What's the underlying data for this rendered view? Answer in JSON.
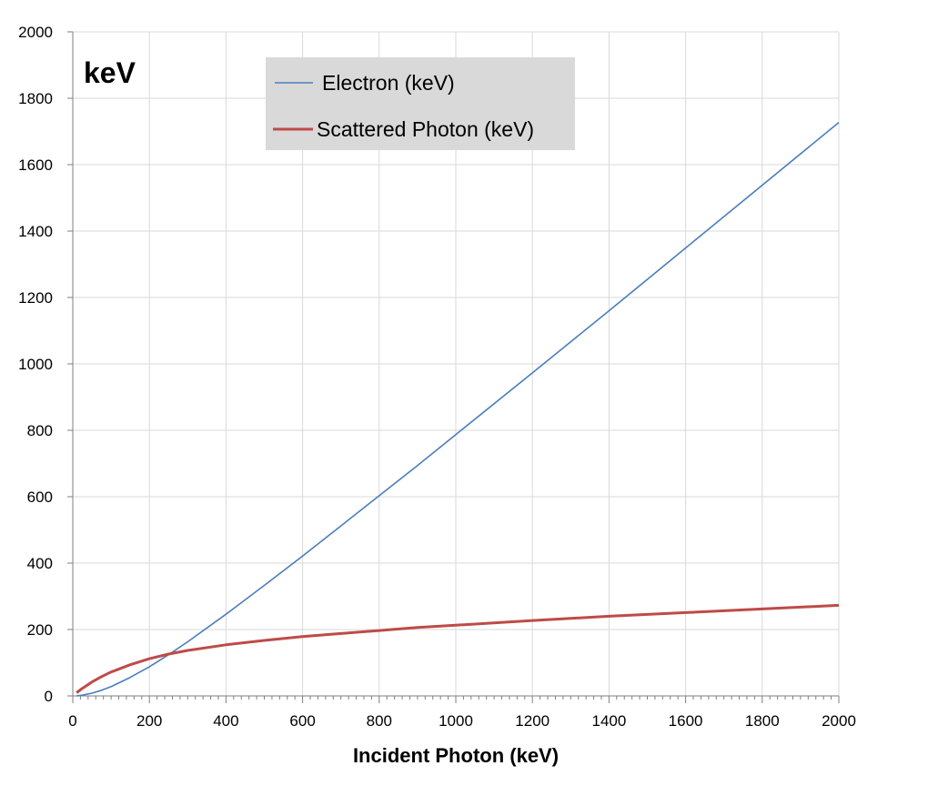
{
  "chart_data": {
    "type": "line",
    "xlabel": "Incident Photon (keV)",
    "ylabel": "keV",
    "xlim": [
      0,
      2000
    ],
    "ylim": [
      0,
      2000
    ],
    "x_ticks": [
      "0",
      "200",
      "400",
      "600",
      "800",
      "1000",
      "1200",
      "1400",
      "1600",
      "1800",
      "2000"
    ],
    "y_ticks": [
      "0",
      "200",
      "400",
      "600",
      "800",
      "1000",
      "1200",
      "1400",
      "1600",
      "1800",
      "2000"
    ],
    "grid": true,
    "legend_position": "top-center",
    "x": [
      10,
      25,
      50,
      75,
      100,
      150,
      200,
      250,
      300,
      400,
      500,
      600,
      700,
      800,
      900,
      1000,
      1200,
      1400,
      1600,
      1800,
      2000
    ],
    "series": [
      {
        "name": "Electron (keV)",
        "color": "#4a7ebb",
        "values": [
          0.4,
          2.2,
          8.2,
          17,
          28,
          56,
          88,
          124,
          163,
          246,
          333,
          421,
          512,
          603,
          694,
          787,
          973,
          1160,
          1349,
          1538,
          1727
        ]
      },
      {
        "name": "Scattered Photon (keV)",
        "color": "#be4b48",
        "values": [
          9.6,
          22.8,
          41.8,
          58,
          72,
          94,
          112,
          126,
          137,
          154,
          167,
          179,
          188,
          197,
          206,
          213,
          227,
          240,
          251,
          262,
          273
        ]
      }
    ]
  }
}
